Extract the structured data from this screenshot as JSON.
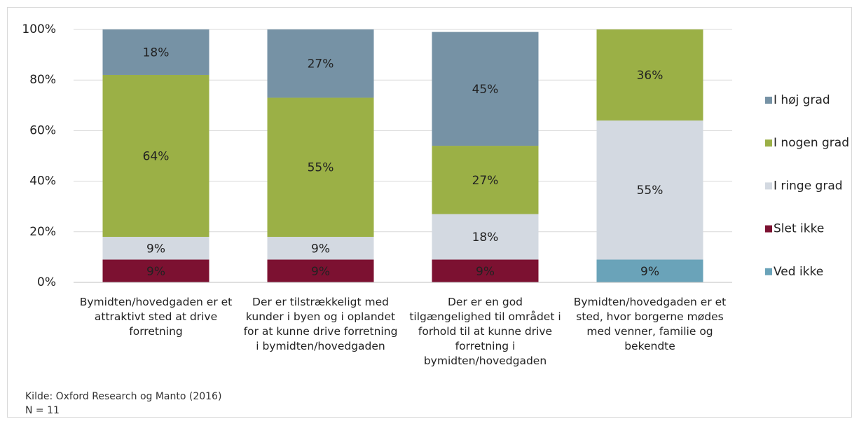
{
  "chart_data": {
    "type": "stacked_bar",
    "categories": [
      "Bymidten/hovedgaden er et attraktivt sted at drive forretning",
      "Der er tilstrækkeligt med kunder i byen og i oplandet for at kunne drive forretning i bymidten/hovedgaden",
      "Der er en god tilgængelighed til området i forhold til at kunne drive forretning i bymidten/hovedgaden",
      "Bymidten/hovedgaden er et sted, hvor borgerne mødes med venner, familie og bekendte"
    ],
    "series": [
      {
        "name": "Ved ikke",
        "color": "#6aa3b9",
        "values": [
          null,
          null,
          null,
          9
        ],
        "value_labels": [
          null,
          null,
          null,
          "9%"
        ]
      },
      {
        "name": "Slet ikke",
        "color": "#7c1131",
        "values": [
          9,
          9,
          9,
          null
        ],
        "value_labels": [
          "9%",
          "9%",
          "9%",
          null
        ]
      },
      {
        "name": "I ringe grad",
        "color": "#d3d9e1",
        "values": [
          9,
          9,
          18,
          55
        ],
        "value_labels": [
          "9%",
          "9%",
          "18%",
          "55%"
        ]
      },
      {
        "name": "I nogen grad",
        "color": "#9bb046",
        "values": [
          64,
          55,
          27,
          36
        ],
        "value_labels": [
          "64%",
          "55%",
          "27%",
          "36%"
        ]
      },
      {
        "name": "I høj grad",
        "color": "#7692a5",
        "values": [
          18,
          27,
          45,
          null
        ],
        "value_labels": [
          "18%",
          "27%",
          "45%",
          null
        ]
      }
    ],
    "ylim": [
      0,
      100
    ],
    "yticks": [
      {
        "value": 0,
        "label": "0%"
      },
      {
        "value": 20,
        "label": "20%"
      },
      {
        "value": 40,
        "label": "40%"
      },
      {
        "value": 60,
        "label": "60%"
      },
      {
        "value": 80,
        "label": "80%"
      },
      {
        "value": 100,
        "label": "100%"
      }
    ],
    "grid": true,
    "legend": "right",
    "notes": [
      "Kilde: Oxford Research og Manto (2016)",
      "N = 11"
    ]
  }
}
